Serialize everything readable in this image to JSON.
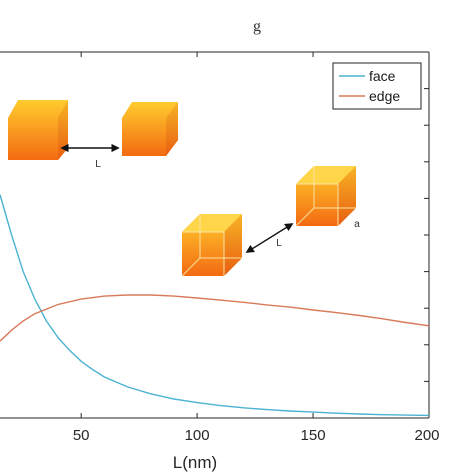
{
  "chart_data": {
    "type": "line",
    "title": "",
    "top_fragment": "g",
    "xlabel": "L(nm)",
    "ylabel": "",
    "xlim": [
      15,
      200
    ],
    "ylim": [
      0,
      10
    ],
    "x_ticks": [
      50,
      100,
      150,
      200
    ],
    "x_tick_labels": [
      "50",
      "100",
      "150",
      "200"
    ],
    "grid": false,
    "legend_position": "top-right",
    "series": [
      {
        "name": "face",
        "color": "#4bb3d1",
        "x": [
          15,
          20,
          25,
          30,
          35,
          40,
          45,
          50,
          55,
          60,
          70,
          80,
          90,
          100,
          110,
          120,
          130,
          140,
          150,
          160,
          170,
          180,
          190,
          200
        ],
        "y": [
          6.1,
          5.0,
          4.0,
          3.25,
          2.65,
          2.2,
          1.85,
          1.55,
          1.32,
          1.12,
          0.85,
          0.66,
          0.52,
          0.42,
          0.34,
          0.28,
          0.23,
          0.19,
          0.16,
          0.13,
          0.11,
          0.09,
          0.08,
          0.07
        ]
      },
      {
        "name": "edge",
        "color": "#d9795a",
        "x": [
          15,
          20,
          25,
          30,
          40,
          50,
          60,
          70,
          80,
          90,
          100,
          110,
          120,
          130,
          140,
          150,
          160,
          170,
          180,
          190,
          200
        ],
        "y": [
          2.1,
          2.4,
          2.65,
          2.85,
          3.1,
          3.25,
          3.33,
          3.36,
          3.36,
          3.33,
          3.28,
          3.22,
          3.16,
          3.09,
          3.03,
          2.95,
          2.88,
          2.8,
          2.71,
          2.61,
          2.52
        ]
      }
    ],
    "annotations": [
      {
        "text": "L",
        "kind": "face-separation"
      },
      {
        "text": "L",
        "kind": "edge-separation"
      },
      {
        "text": "a",
        "kind": "cube-edge-length"
      }
    ]
  }
}
